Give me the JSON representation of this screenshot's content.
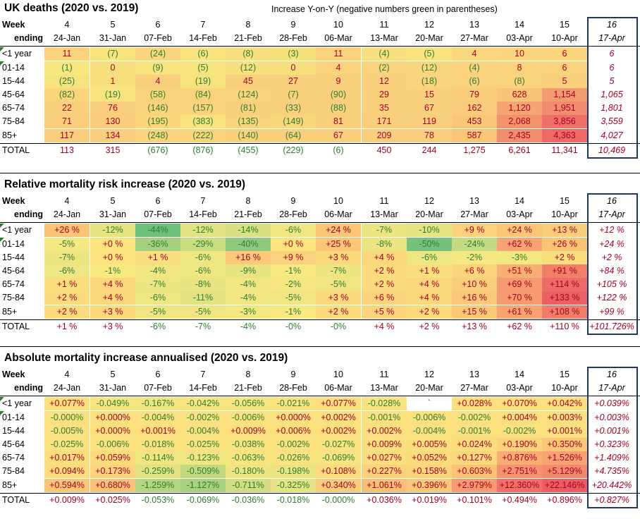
{
  "colors": {
    "neg": "#2e7d32",
    "pos": "#a50021",
    "frame": "#1f3864"
  },
  "labels": {
    "week": "Week",
    "ending": "ending",
    "total": "TOTAL"
  },
  "weeks": [
    "4",
    "5",
    "6",
    "7",
    "8",
    "9",
    "10",
    "11",
    "12",
    "13",
    "14",
    "15",
    "16"
  ],
  "dates": [
    "24-Jan",
    "31-Jan",
    "07-Feb",
    "14-Feb",
    "21-Feb",
    "28-Feb",
    "06-Mar",
    "13-Mar",
    "20-Mar",
    "27-Mar",
    "03-Apr",
    "10-Apr",
    "17-Apr"
  ],
  "ages": [
    "<1 year",
    "01-14",
    "15-44",
    "45-64",
    "65-74",
    "75-84",
    "85+"
  ],
  "sections": [
    {
      "title": "UK deaths (2020 vs. 2019)",
      "subtitle": "Increase Y-on-Y (negative numbers green in parentheses)",
      "rows": [
        [
          "11",
          "(7)",
          "(24)",
          "(6)",
          "(8)",
          "(3)",
          "11",
          "(4)",
          "(5)",
          "4",
          "10",
          "6",
          "6"
        ],
        [
          "(1)",
          "0",
          "(9)",
          "(5)",
          "(12)",
          "0",
          "4",
          "(2)",
          "(12)",
          "(4)",
          "8",
          "6",
          "6"
        ],
        [
          "(25)",
          "1",
          "4",
          "(19)",
          "45",
          "27",
          "9",
          "12",
          "(18)",
          "(6)",
          "(8)",
          "5",
          "5"
        ],
        [
          "(82)",
          "(19)",
          "(58)",
          "(84)",
          "(124)",
          "(7)",
          "(90)",
          "29",
          "15",
          "79",
          "628",
          "1,154",
          "1,065"
        ],
        [
          "22",
          "76",
          "(146)",
          "(157)",
          "(81)",
          "(33)",
          "(88)",
          "35",
          "67",
          "162",
          "1,120",
          "1,951",
          "1,801"
        ],
        [
          "71",
          "130",
          "(195)",
          "(383)",
          "(135)",
          "(149)",
          "81",
          "171",
          "119",
          "453",
          "2,068",
          "3,856",
          "3,559"
        ],
        [
          "117",
          "134",
          "(248)",
          "(222)",
          "(140)",
          "(64)",
          "67",
          "209",
          "78",
          "587",
          "2,435",
          "4,363",
          "4,027"
        ]
      ],
      "total": [
        "113",
        "315",
        "(676)",
        "(876)",
        "(455)",
        "(229)",
        "(6)",
        "450",
        "244",
        "1,275",
        "6,261",
        "11,341",
        "10,469"
      ],
      "bg": [
        [
          "#fad37c",
          "#f8e47e",
          "#f9d67d",
          "#f8e47e",
          "#f7e17e",
          "#f5e27d",
          "#fad37c",
          "#f9e07e",
          "#f8e47e",
          "#fad77c",
          "#fad57c",
          "#fad57c"
        ],
        [
          "#f6e77f",
          "#f9e07e",
          "#f8e47e",
          "#f8e47e",
          "#f9e07e",
          "#f9e07e",
          "#fad37c",
          "#fad37c",
          "#f9d67d",
          "#fad37c",
          "#fad37c",
          "#fad37c"
        ],
        [
          "#f6e37e",
          "#f9e07e",
          "#fad07c",
          "#f6e37e",
          "#f9d07c",
          "#f9d07c",
          "#fad07c",
          "#fad07c",
          "#fad37c",
          "#fad37c",
          "#fad37c",
          "#fad07c"
        ],
        [
          "#fad57c",
          "#f7e47e",
          "#fad37c",
          "#fad37c",
          "#fad37c",
          "#fad07c",
          "#fad07c",
          "#f9d07c",
          "#f9d07c",
          "#facd7b",
          "#f8c578",
          "#f59b71"
        ],
        [
          "#fad07c",
          "#f9ce7c",
          "#fad37c",
          "#fad37c",
          "#fad07c",
          "#fad07c",
          "#fad07c",
          "#f9d07c",
          "#f9d07c",
          "#f9cb7b",
          "#f6a472",
          "#f28c6e"
        ],
        [
          "#f9ce7c",
          "#f9cd7b",
          "#fad57c",
          "#fae27e",
          "#f9d37c",
          "#f9d57c",
          "#fad07c",
          "#f9ce7c",
          "#f9ce7c",
          "#f9c778",
          "#f2936e",
          "#ef7068"
        ],
        [
          "#f9ce7c",
          "#f9ce7c",
          "#fad37c",
          "#fad37c",
          "#fad07c",
          "#fad07c",
          "#fad07c",
          "#f9ce7c",
          "#f9ce7c",
          "#f9c677",
          "#f28d6d",
          "#ee6966"
        ]
      ]
    },
    {
      "title": "Relative mortality risk increase (2020 vs. 2019)",
      "rows": [
        [
          "+26 %",
          "-12%",
          "-44%",
          "-12%",
          "-14%",
          "-6%",
          "+24 %",
          "-7%",
          "-10%",
          "+9 %",
          "+24 %",
          "+13 %",
          "+12 %"
        ],
        [
          "-5%",
          "+0 %",
          "-36%",
          "-29%",
          "-40%",
          "+0 %",
          "+25 %",
          "-8%",
          "-50%",
          "-24%",
          "+62 %",
          "+26 %",
          "+24 %"
        ],
        [
          "-7%",
          "+0 %",
          "+1 %",
          "-6%",
          "+16 %",
          "+9 %",
          "+3 %",
          "+4 %",
          "-6%",
          "-2%",
          "-3%",
          "+2 %",
          "+2 %"
        ],
        [
          "-6%",
          "-1%",
          "-4%",
          "-6%",
          "-9%",
          "-1%",
          "-7%",
          "+2 %",
          "+1 %",
          "+6 %",
          "+51 %",
          "+91 %",
          "+84 %"
        ],
        [
          "+1 %",
          "+4 %",
          "-7%",
          "-8%",
          "-4%",
          "-2%",
          "-5%",
          "+2 %",
          "+4 %",
          "+10 %",
          "+69 %",
          "+114 %",
          "+105 %"
        ],
        [
          "+2 %",
          "+4 %",
          "-6%",
          "-11%",
          "-4%",
          "-5%",
          "+3 %",
          "+6 %",
          "+4 %",
          "+16 %",
          "+70 %",
          "+133 %",
          "+122 %"
        ],
        [
          "+2 %",
          "+3 %",
          "-5%",
          "-5%",
          "-3%",
          "-1%",
          "+2 %",
          "+5 %",
          "+2 %",
          "+15 %",
          "+61 %",
          "+108 %",
          "+99 %"
        ]
      ],
      "total": [
        "+1 %",
        "+3 %",
        "-6%",
        "-7%",
        "-4%",
        "-0%",
        "-0%",
        "+4 %",
        "+2 %",
        "+13 %",
        "+62 %",
        "+110 %",
        "+101.726%"
      ],
      "bg": [
        [
          "#f9c476",
          "#e7e381",
          "#6fbf7c",
          "#e1e282",
          "#d8e081",
          "#efe683",
          "#f9c676",
          "#ece582",
          "#e5e483",
          "#fad27c",
          "#f9c676",
          "#facd7b"
        ],
        [
          "#f5e882",
          "#fbe47e",
          "#a4d07f",
          "#c8dc80",
          "#90c97e",
          "#fbe47e",
          "#f9c576",
          "#ece582",
          "#76c17d",
          "#c4da80",
          "#f7a472",
          "#f9c476"
        ],
        [
          "#ece582",
          "#fbe47e",
          "#fadf7e",
          "#eee682",
          "#fac97a",
          "#fad17c",
          "#fad97d",
          "#fad77d",
          "#eee682",
          "#f5e782",
          "#f3e782",
          "#fadd7e"
        ],
        [
          "#eee682",
          "#f7e882",
          "#f1e682",
          "#eee682",
          "#e8e482",
          "#f7e882",
          "#ece582",
          "#fadb7d",
          "#fadf7e",
          "#fad57c",
          "#f7b073",
          "#f1806b"
        ],
        [
          "#fade7e",
          "#fad77d",
          "#ece582",
          "#e9e482",
          "#f1e682",
          "#f4e782",
          "#f0e582",
          "#fadb7d",
          "#fad77d",
          "#facf7b",
          "#f69b71",
          "#ee6b67"
        ],
        [
          "#fadb7d",
          "#fad77d",
          "#eee682",
          "#e3e281",
          "#f1e682",
          "#f0e582",
          "#fad97d",
          "#fad47c",
          "#fad77d",
          "#f9c878",
          "#f69a71",
          "#ec5f63"
        ],
        [
          "#fadb7d",
          "#fad97d",
          "#f0e582",
          "#f0e582",
          "#f3e782",
          "#f7e882",
          "#fadb7d",
          "#fad57c",
          "#fadb7d",
          "#f9c978",
          "#f7a372",
          "#f07c6a"
        ]
      ]
    },
    {
      "title": "Absolute mortality increase annualised (2020 vs. 2019)",
      "rows": [
        [
          "+0.077%",
          "-0.049%",
          "-0.167%",
          "-0.042%",
          "-0.056%",
          "-0.021%",
          "+0.077%",
          "-0.028%",
          "`",
          "+0.028%",
          "+0.070%",
          "+0.042%",
          "+0.039%"
        ],
        [
          "-0.000%",
          "+0.000%",
          "-0.004%",
          "-0.002%",
          "-0.006%",
          "+0.000%",
          "+0.002%",
          "-0.001%",
          "-0.006%",
          "-0.002%",
          "+0.004%",
          "+0.003%",
          "+0.003%"
        ],
        [
          "-0.005%",
          "+0.000%",
          "+0.001%",
          "-0.004%",
          "+0.009%",
          "+0.006%",
          "+0.002%",
          "+0.002%",
          "-0.004%",
          "-0.001%",
          "-0.002%",
          "+0.001%",
          "+0.001%"
        ],
        [
          "-0.025%",
          "-0.006%",
          "-0.018%",
          "-0.025%",
          "-0.038%",
          "-0.002%",
          "-0.027%",
          "+0.009%",
          "+0.005%",
          "+0.024%",
          "+0.190%",
          "+0.350%",
          "+0.323%"
        ],
        [
          "+0.017%",
          "+0.059%",
          "-0.114%",
          "-0.123%",
          "-0.063%",
          "-0.026%",
          "-0.069%",
          "+0.027%",
          "+0.052%",
          "+0.127%",
          "+0.876%",
          "+1.526%",
          "+1.409%"
        ],
        [
          "+0.094%",
          "+0.173%",
          "-0.259%",
          "-0.509%",
          "-0.180%",
          "-0.198%",
          "+0.108%",
          "+0.227%",
          "+0.158%",
          "+0.603%",
          "+2.751%",
          "+5.129%",
          "+4.735%"
        ],
        [
          "+0.594%",
          "+0.680%",
          "-1.259%",
          "-1.127%",
          "-0.711%",
          "-0.325%",
          "+0.340%",
          "+1.061%",
          "+0.396%",
          "+2.979%",
          "+12.360%",
          "+22.146%",
          "+20.442%"
        ]
      ],
      "total": [
        "+0.009%",
        "+0.025%",
        "-0.053%",
        "-0.069%",
        "-0.036%",
        "-0.018%",
        "-0.000%",
        "+0.036%",
        "+0.019%",
        "+0.101%",
        "+0.494%",
        "+0.896%",
        "+0.827%"
      ],
      "bg": [
        [
          "#fae07e",
          "#f5e681",
          "#f0e582",
          "#f5e681",
          "#f5e681",
          "#f8e380",
          "#fae07e",
          "#f8e380",
          "#ffffff",
          "#fae07e",
          "#fae07e",
          "#fae07e"
        ],
        [
          "#fae07e",
          "#fae07e",
          "#fae07e",
          "#fae07e",
          "#fae07e",
          "#fae07e",
          "#fae07e",
          "#fae07e",
          "#fae07e",
          "#fae07e",
          "#fae07e",
          "#fae07e"
        ],
        [
          "#fae07e",
          "#fae07e",
          "#fae07e",
          "#fae07e",
          "#fae07e",
          "#fae07e",
          "#fae07e",
          "#fae07e",
          "#fae07e",
          "#fae07e",
          "#fae07e",
          "#fae07e"
        ],
        [
          "#f9e27f",
          "#fae07e",
          "#f9e17e",
          "#f9e27f",
          "#f8e37f",
          "#fae07e",
          "#f9e27f",
          "#fadf7e",
          "#fadf7e",
          "#fadd7d",
          "#fad37c",
          "#f9c778"
        ],
        [
          "#fadd7d",
          "#fadc7d",
          "#f1e582",
          "#f0e582",
          "#f6e481",
          "#f8e37f",
          "#f5e481",
          "#fadd7d",
          "#fadc7d",
          "#f9d77c",
          "#f9ad73",
          "#f7a271"
        ],
        [
          "#fadb7d",
          "#f9d47c",
          "#e2e282",
          "#c2d980",
          "#eee582",
          "#ebe482",
          "#fadb7d",
          "#f9d37c",
          "#f9d57c",
          "#f9c376",
          "#f59270",
          "#f28a6e"
        ],
        [
          "#f9c577",
          "#f9c377",
          "#b5d480",
          "#a7d07f",
          "#d2dd81",
          "#e5e382",
          "#f9cc79",
          "#f9bf75",
          "#f9c979",
          "#f79a70",
          "#f06f69",
          "#ec5c63"
        ]
      ]
    }
  ]
}
